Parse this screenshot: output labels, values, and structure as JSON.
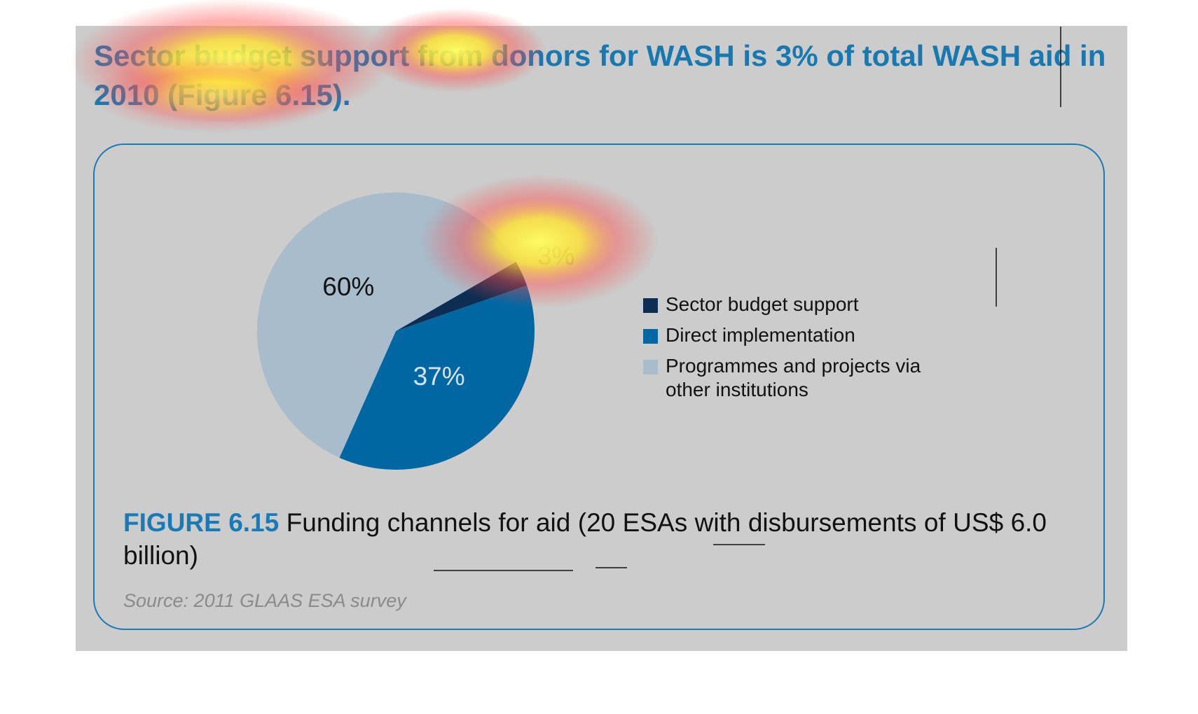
{
  "headline": "Sector budget support from donors for WASH is 3% of total WASH aid in 2010 (Figure 6.15).",
  "chart_data": {
    "type": "pie",
    "categories": [
      "Sector budget support",
      "Direct implementation",
      "Programmes and projects via other institutions"
    ],
    "values": [
      3,
      37,
      60
    ],
    "value_labels": [
      "3%",
      "37%",
      "60%"
    ],
    "colors": [
      "#0d2d52",
      "#0067a3",
      "#a8bccb"
    ],
    "figure_label": "FIGURE 6.15",
    "title": "Funding channels for aid (20 ESAs with disbursements of US$ 6.0 billion)",
    "source": "Source: 2011 GLAAS ESA survey"
  }
}
